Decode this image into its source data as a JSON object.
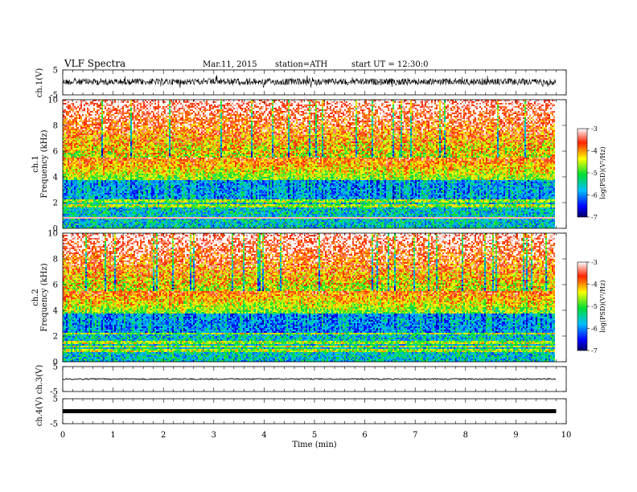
{
  "header": {
    "title": "VLF Spectra",
    "date": "Mar.11, 2015",
    "station": "station=ATH",
    "start": "start UT = 12:30:0"
  },
  "chart_data": [
    {
      "type": "line",
      "ylabel": "ch.1(V)",
      "ylim": [
        -5,
        5
      ],
      "y_ticks": [
        "5",
        "-5"
      ],
      "xlim": [
        0,
        10
      ],
      "x_end": 9.8,
      "level": 0.25,
      "spread": 0.45,
      "description": "noisy waveform"
    },
    {
      "type": "heatmap",
      "ylabel": "ch.1 Frequency (kHz)",
      "ylim": [
        0,
        10
      ],
      "y_ticks": [
        "0",
        "2",
        "4",
        "6",
        "8",
        "10"
      ],
      "xlim": [
        0,
        10
      ],
      "x_end": 9.8,
      "colorbar": {
        "label": "log(PSD)(V²/Hz)",
        "range": [
          -7,
          -3
        ],
        "ticks": [
          "-3",
          "-4",
          "-5",
          "-6",
          "-7"
        ]
      }
    },
    {
      "type": "heatmap",
      "ylabel": "ch.2 Frequency (kHz)",
      "ylim": [
        0,
        10
      ],
      "y_ticks": [
        "0",
        "2",
        "4",
        "6",
        "8",
        "10"
      ],
      "xlim": [
        0,
        10
      ],
      "x_end": 9.8,
      "colorbar": {
        "label": "log(PSD)(V²/Hz)",
        "range": [
          -7,
          -3
        ],
        "ticks": [
          "-3",
          "-4",
          "-5",
          "-6",
          "-7"
        ]
      }
    },
    {
      "type": "line",
      "ylabel": "ch.3(V)",
      "ylim": [
        -5,
        5
      ],
      "y_ticks": [
        "5",
        "-5"
      ],
      "xlim": [
        0,
        10
      ],
      "x_end": 9.8,
      "level": 0.0,
      "spread": 0.05
    },
    {
      "type": "line",
      "ylabel": "ch.4(V)",
      "ylim": [
        -5,
        5
      ],
      "y_ticks": [
        "5",
        "-5"
      ],
      "xlim": [
        0,
        10
      ],
      "x_end": 9.8,
      "level": 0.0,
      "spread": 0.2
    }
  ],
  "x_axis": {
    "label": "Time (min)",
    "ticks": [
      "0",
      "1",
      "2",
      "3",
      "4",
      "5",
      "6",
      "7",
      "8",
      "9",
      "10"
    ]
  }
}
